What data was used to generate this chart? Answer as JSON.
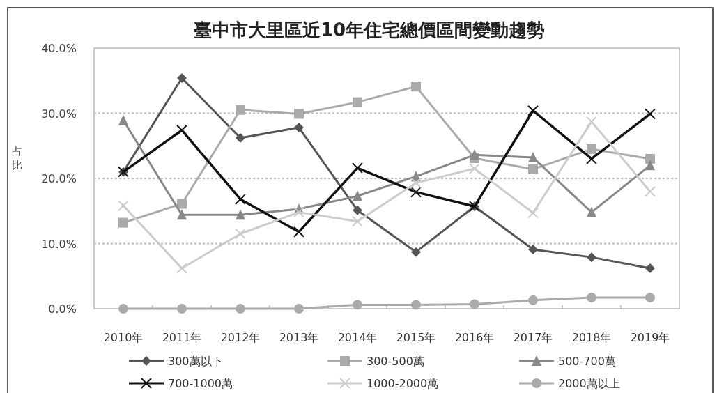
{
  "chart_data": {
    "type": "line",
    "title": "臺中市大里區近10年住宅總價區間變動趨勢",
    "ylabel": "占比",
    "categories": [
      "2010年",
      "2011年",
      "2012年",
      "2013年",
      "2014年",
      "2015年",
      "2016年",
      "2017年",
      "2018年",
      "2019年"
    ],
    "series": [
      {
        "name": "300萬以下",
        "color": "#555555",
        "marker": "diamond",
        "values": [
          21.0,
          35.4,
          26.2,
          27.8,
          15.1,
          8.7,
          15.7,
          9.1,
          7.9,
          6.2
        ]
      },
      {
        "name": "300-500萬",
        "color": "#aaaaaa",
        "marker": "square",
        "values": [
          13.2,
          16.1,
          30.5,
          29.9,
          31.7,
          34.1,
          23.1,
          21.4,
          24.5,
          23.0
        ]
      },
      {
        "name": "500-700萬",
        "color": "#888888",
        "marker": "triangle",
        "values": [
          28.9,
          14.4,
          14.4,
          15.3,
          17.3,
          20.3,
          23.6,
          23.2,
          14.8,
          22.0
        ]
      },
      {
        "name": "700-1000萬",
        "color": "#111111",
        "marker": "cross",
        "values": [
          21.0,
          27.4,
          16.8,
          11.8,
          21.6,
          17.9,
          15.7,
          30.4,
          23.0,
          29.9
        ]
      },
      {
        "name": "1000-2000萬",
        "color": "#cccccc",
        "marker": "cross",
        "values": [
          15.8,
          6.2,
          11.5,
          14.8,
          13.4,
          19.3,
          21.5,
          14.7,
          28.7,
          18.0
        ]
      },
      {
        "name": "2000萬以上",
        "color": "#aaaaaa",
        "marker": "circle",
        "values": [
          0,
          0,
          0,
          0,
          0.6,
          0.6,
          0.7,
          1.3,
          1.7,
          1.7
        ]
      }
    ],
    "ylim": [
      0,
      40
    ],
    "yticks": [
      {
        "value": 0,
        "label": "0.0%"
      },
      {
        "value": 10,
        "label": "10.0%"
      },
      {
        "value": 20,
        "label": "20.0%"
      },
      {
        "value": 30,
        "label": "30.0%"
      },
      {
        "value": 40,
        "label": "40.0%"
      }
    ],
    "grid": "y",
    "legend": "bottom",
    "line_style": "solid"
  }
}
